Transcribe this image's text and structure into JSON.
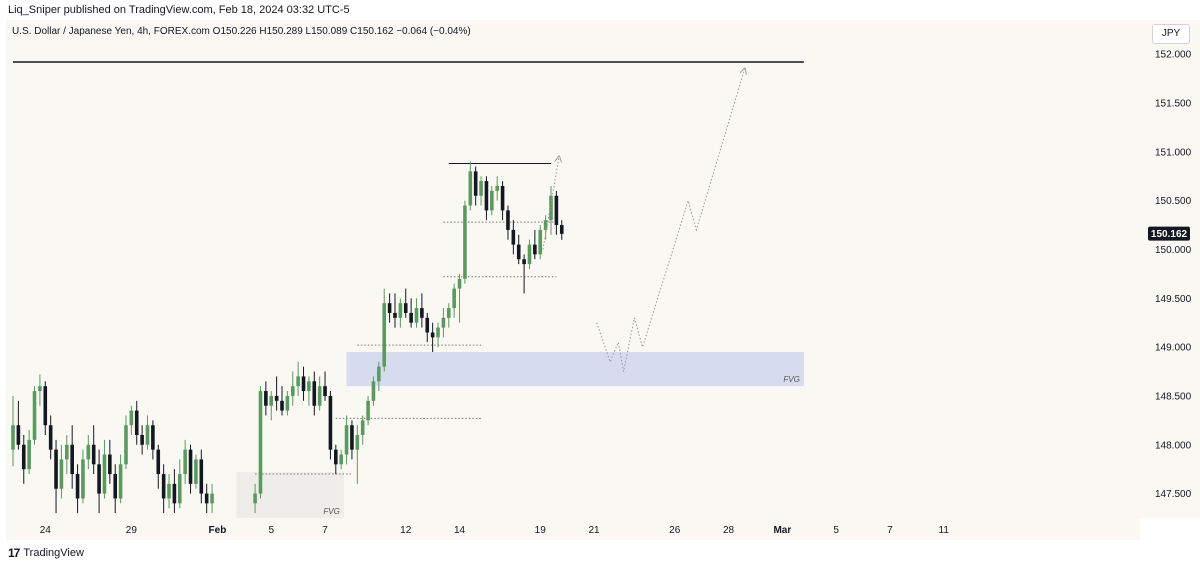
{
  "publisher": "Liq_Sniper published on TradingView.com, Feb 18, 2024 03:32 UTC-5",
  "legend": {
    "symbol": "U.S. Dollar / Japanese Yen, 4h, FOREX.com",
    "open": "O150.226",
    "high": "H150.289",
    "low": "L150.089",
    "close": "C150.162",
    "change": "−0.064 (−0.04%)"
  },
  "currency": "JPY",
  "footer": {
    "brand": "TradingView"
  },
  "colors": {
    "up": "#5b9a5f",
    "down": "#131722",
    "fvg_blue": "#d7dbee",
    "fvg_grey": "#eeede9",
    "background": "#faf8f3"
  },
  "chart_data": {
    "type": "candlestick",
    "symbol": "USDJPY",
    "interval": "4h",
    "ylim": [
      147.25,
      152.35
    ],
    "xlim": [
      0,
      147
    ],
    "y_ticks": [
      "147.500",
      "148.000",
      "148.500",
      "149.000",
      "149.500",
      "150.000",
      "150.500",
      "151.000",
      "151.500",
      "152.000"
    ],
    "x_ticks": [
      {
        "label": "24",
        "bar": 6
      },
      {
        "label": "29",
        "bar": 22
      },
      {
        "label": "Feb",
        "bar": 38
      },
      {
        "label": "5",
        "bar": 48
      },
      {
        "label": "7",
        "bar": 58
      },
      {
        "label": "12",
        "bar": 73
      },
      {
        "label": "14",
        "bar": 83
      },
      {
        "label": "19",
        "bar": 98
      },
      {
        "label": "21",
        "bar": 108
      },
      {
        "label": "26",
        "bar": 123
      },
      {
        "label": "28",
        "bar": 133
      },
      {
        "label": "Mar",
        "bar": 143
      },
      {
        "label": "5",
        "bar": 153
      },
      {
        "label": "7",
        "bar": 163
      },
      {
        "label": "11",
        "bar": 173
      }
    ],
    "last_price": "150.162",
    "candles": [
      {
        "o": 147.95,
        "h": 148.5,
        "l": 147.78,
        "c": 148.2
      },
      {
        "o": 148.2,
        "h": 148.45,
        "l": 147.95,
        "c": 148.0
      },
      {
        "o": 148.0,
        "h": 148.1,
        "l": 147.6,
        "c": 147.75
      },
      {
        "o": 147.75,
        "h": 148.15,
        "l": 147.7,
        "c": 148.05
      },
      {
        "o": 148.05,
        "h": 148.6,
        "l": 148.0,
        "c": 148.55
      },
      {
        "o": 148.55,
        "h": 148.72,
        "l": 148.4,
        "c": 148.6
      },
      {
        "o": 148.6,
        "h": 148.65,
        "l": 148.1,
        "c": 148.2
      },
      {
        "o": 148.2,
        "h": 148.3,
        "l": 147.85,
        "c": 147.95
      },
      {
        "o": 147.95,
        "h": 148.05,
        "l": 147.3,
        "c": 147.55
      },
      {
        "o": 147.55,
        "h": 148.0,
        "l": 147.45,
        "c": 147.85
      },
      {
        "o": 147.85,
        "h": 148.1,
        "l": 147.7,
        "c": 148.0
      },
      {
        "o": 148.0,
        "h": 148.2,
        "l": 147.55,
        "c": 147.7
      },
      {
        "o": 147.7,
        "h": 147.8,
        "l": 147.3,
        "c": 147.45
      },
      {
        "o": 147.45,
        "h": 147.95,
        "l": 147.4,
        "c": 147.85
      },
      {
        "o": 147.85,
        "h": 148.1,
        "l": 147.75,
        "c": 148.0
      },
      {
        "o": 148.0,
        "h": 148.2,
        "l": 147.7,
        "c": 147.8
      },
      {
        "o": 147.8,
        "h": 147.95,
        "l": 147.3,
        "c": 147.5
      },
      {
        "o": 147.5,
        "h": 148.05,
        "l": 147.45,
        "c": 147.9
      },
      {
        "o": 147.9,
        "h": 148.05,
        "l": 147.6,
        "c": 147.7
      },
      {
        "o": 147.7,
        "h": 147.8,
        "l": 147.3,
        "c": 147.45
      },
      {
        "o": 147.45,
        "h": 147.9,
        "l": 147.4,
        "c": 147.8
      },
      {
        "o": 147.8,
        "h": 148.3,
        "l": 147.75,
        "c": 148.2
      },
      {
        "o": 148.2,
        "h": 148.4,
        "l": 148.1,
        "c": 148.35
      },
      {
        "o": 148.35,
        "h": 148.45,
        "l": 148.0,
        "c": 148.1
      },
      {
        "o": 148.1,
        "h": 148.2,
        "l": 147.9,
        "c": 148.0
      },
      {
        "o": 148.0,
        "h": 148.3,
        "l": 147.95,
        "c": 148.2
      },
      {
        "o": 148.2,
        "h": 148.25,
        "l": 147.85,
        "c": 147.95
      },
      {
        "o": 147.95,
        "h": 148.0,
        "l": 147.55,
        "c": 147.7
      },
      {
        "o": 147.7,
        "h": 147.8,
        "l": 147.3,
        "c": 147.45
      },
      {
        "o": 147.45,
        "h": 147.7,
        "l": 147.35,
        "c": 147.6
      },
      {
        "o": 147.6,
        "h": 147.75,
        "l": 147.3,
        "c": 147.4
      },
      {
        "o": 147.4,
        "h": 147.85,
        "l": 147.35,
        "c": 147.7
      },
      {
        "o": 147.7,
        "h": 148.05,
        "l": 147.6,
        "c": 147.95
      },
      {
        "o": 147.95,
        "h": 148.0,
        "l": 147.5,
        "c": 147.6
      },
      {
        "o": 147.6,
        "h": 147.9,
        "l": 147.55,
        "c": 147.85
      },
      {
        "o": 147.85,
        "h": 147.95,
        "l": 147.4,
        "c": 147.5
      },
      {
        "o": 147.5,
        "h": 147.6,
        "l": 147.3,
        "c": 147.4
      },
      {
        "o": 147.4,
        "h": 147.6,
        "l": 147.3,
        "c": 147.5
      },
      null,
      null,
      null,
      null,
      null,
      null,
      null,
      {
        "o": 147.4,
        "h": 147.6,
        "l": 147.3,
        "c": 147.5
      },
      {
        "o": 147.5,
        "h": 148.6,
        "l": 147.45,
        "c": 148.55
      },
      {
        "o": 148.55,
        "h": 148.65,
        "l": 148.3,
        "c": 148.4
      },
      {
        "o": 148.4,
        "h": 148.55,
        "l": 148.25,
        "c": 148.5
      },
      {
        "o": 148.5,
        "h": 148.7,
        "l": 148.35,
        "c": 148.45
      },
      {
        "o": 148.45,
        "h": 148.6,
        "l": 148.3,
        "c": 148.35
      },
      {
        "o": 148.35,
        "h": 148.55,
        "l": 148.3,
        "c": 148.5
      },
      {
        "o": 148.5,
        "h": 148.75,
        "l": 148.4,
        "c": 148.6
      },
      {
        "o": 148.6,
        "h": 148.85,
        "l": 148.5,
        "c": 148.7
      },
      {
        "o": 148.7,
        "h": 148.8,
        "l": 148.45,
        "c": 148.55
      },
      {
        "o": 148.55,
        "h": 148.7,
        "l": 148.4,
        "c": 148.65
      },
      {
        "o": 148.65,
        "h": 148.75,
        "l": 148.3,
        "c": 148.4
      },
      {
        "o": 148.4,
        "h": 148.7,
        "l": 148.35,
        "c": 148.6
      },
      {
        "o": 148.6,
        "h": 148.75,
        "l": 148.45,
        "c": 148.5
      },
      {
        "o": 148.5,
        "h": 148.55,
        "l": 147.85,
        "c": 147.95
      },
      {
        "o": 147.95,
        "h": 148.0,
        "l": 147.7,
        "c": 147.8
      },
      {
        "o": 147.8,
        "h": 147.95,
        "l": 147.75,
        "c": 147.9
      },
      {
        "o": 147.9,
        "h": 148.3,
        "l": 147.8,
        "c": 148.2
      },
      {
        "o": 148.2,
        "h": 148.25,
        "l": 147.85,
        "c": 147.95
      },
      {
        "o": 147.95,
        "h": 148.2,
        "l": 147.6,
        "c": 148.1
      },
      {
        "o": 148.1,
        "h": 148.3,
        "l": 148.0,
        "c": 148.25
      },
      {
        "o": 148.25,
        "h": 148.5,
        "l": 148.2,
        "c": 148.45
      },
      {
        "o": 148.45,
        "h": 148.7,
        "l": 148.4,
        "c": 148.65
      },
      {
        "o": 148.65,
        "h": 148.85,
        "l": 148.55,
        "c": 148.8
      },
      {
        "o": 148.8,
        "h": 149.6,
        "l": 148.75,
        "c": 149.45
      },
      {
        "o": 149.45,
        "h": 149.55,
        "l": 149.25,
        "c": 149.35
      },
      {
        "o": 149.35,
        "h": 149.55,
        "l": 149.2,
        "c": 149.3
      },
      {
        "o": 149.3,
        "h": 149.5,
        "l": 149.2,
        "c": 149.45
      },
      {
        "o": 149.45,
        "h": 149.6,
        "l": 149.3,
        "c": 149.35
      },
      {
        "o": 149.35,
        "h": 149.5,
        "l": 149.2,
        "c": 149.25
      },
      {
        "o": 149.25,
        "h": 149.5,
        "l": 149.2,
        "c": 149.4
      },
      {
        "o": 149.4,
        "h": 149.55,
        "l": 149.2,
        "c": 149.3
      },
      {
        "o": 149.3,
        "h": 149.35,
        "l": 149.05,
        "c": 149.15
      },
      {
        "o": 149.15,
        "h": 149.25,
        "l": 148.95,
        "c": 149.1
      },
      {
        "o": 149.1,
        "h": 149.25,
        "l": 149.0,
        "c": 149.2
      },
      {
        "o": 149.2,
        "h": 149.4,
        "l": 149.1,
        "c": 149.3
      },
      {
        "o": 149.3,
        "h": 149.45,
        "l": 149.2,
        "c": 149.4
      },
      {
        "o": 149.4,
        "h": 149.65,
        "l": 149.3,
        "c": 149.6
      },
      {
        "o": 149.6,
        "h": 149.75,
        "l": 149.25,
        "c": 149.7
      },
      {
        "o": 149.7,
        "h": 150.5,
        "l": 149.65,
        "c": 150.45
      },
      {
        "o": 150.45,
        "h": 150.9,
        "l": 150.4,
        "c": 150.8
      },
      {
        "o": 150.8,
        "h": 150.85,
        "l": 150.45,
        "c": 150.55
      },
      {
        "o": 150.55,
        "h": 150.75,
        "l": 150.45,
        "c": 150.7
      },
      {
        "o": 150.7,
        "h": 150.75,
        "l": 150.3,
        "c": 150.4
      },
      {
        "o": 150.4,
        "h": 150.65,
        "l": 150.35,
        "c": 150.6
      },
      {
        "o": 150.6,
        "h": 150.75,
        "l": 150.5,
        "c": 150.65
      },
      {
        "o": 150.65,
        "h": 150.7,
        "l": 150.3,
        "c": 150.4
      },
      {
        "o": 150.4,
        "h": 150.45,
        "l": 150.1,
        "c": 150.2
      },
      {
        "o": 150.2,
        "h": 150.3,
        "l": 149.95,
        "c": 150.05
      },
      {
        "o": 150.05,
        "h": 150.15,
        "l": 149.85,
        "c": 149.9
      },
      {
        "o": 149.9,
        "h": 149.95,
        "l": 149.55,
        "c": 149.85
      },
      {
        "o": 149.85,
        "h": 150.1,
        "l": 149.8,
        "c": 150.05
      },
      {
        "o": 150.05,
        "h": 150.2,
        "l": 149.9,
        "c": 149.95
      },
      {
        "o": 149.95,
        "h": 150.25,
        "l": 149.9,
        "c": 150.2
      },
      {
        "o": 150.2,
        "h": 150.35,
        "l": 150.1,
        "c": 150.3
      },
      {
        "o": 150.3,
        "h": 150.65,
        "l": 150.15,
        "c": 150.55
      },
      {
        "o": 150.55,
        "h": 150.6,
        "l": 150.15,
        "c": 150.25
      },
      {
        "o": 150.25,
        "h": 150.3,
        "l": 150.1,
        "c": 150.16
      }
    ],
    "horizontal_lines": [
      {
        "y": 151.92,
        "from_bar": 0,
        "to_bar": 147,
        "style": "solid",
        "width": 1.5
      },
      {
        "y": 150.88,
        "from_bar": 81,
        "to_bar": 100,
        "style": "solid",
        "width": 1
      },
      {
        "y": 150.28,
        "from_bar": 80,
        "to_bar": 101,
        "style": "dotted",
        "width": 1
      },
      {
        "y": 149.72,
        "from_bar": 80,
        "to_bar": 101,
        "style": "dotted",
        "width": 1
      },
      {
        "y": 149.02,
        "from_bar": 64,
        "to_bar": 87,
        "style": "dotted",
        "width": 1
      },
      {
        "y": 148.27,
        "from_bar": 60,
        "to_bar": 87,
        "style": "dotted",
        "width": 1
      },
      {
        "y": 147.7,
        "from_bar": 45,
        "to_bar": 63,
        "style": "dotted",
        "width": 1
      }
    ],
    "zones": [
      {
        "label": "FVG",
        "x0": 62,
        "x1": 147,
        "y0": 148.6,
        "y1": 148.95,
        "color": "#d7dbee"
      },
      {
        "label": "FVG",
        "x0": 41.5,
        "x1": 61.5,
        "y0": 147.25,
        "y1": 147.72,
        "color": "#eeede9"
      }
    ],
    "projection": [
      {
        "bar": 98.5,
        "y": 150.0
      },
      {
        "bar": 101.5,
        "y": 150.95
      },
      {
        "bar": 108.5,
        "y": 149.25
      },
      {
        "bar": 111,
        "y": 148.85
      },
      {
        "bar": 112.5,
        "y": 149.05
      },
      {
        "bar": 113.5,
        "y": 148.75
      },
      {
        "bar": 115.5,
        "y": 149.3
      },
      {
        "bar": 117,
        "y": 149.0
      },
      {
        "bar": 125.5,
        "y": 150.5
      },
      {
        "bar": 127,
        "y": 150.2
      },
      {
        "bar": 136,
        "y": 151.85
      }
    ]
  }
}
